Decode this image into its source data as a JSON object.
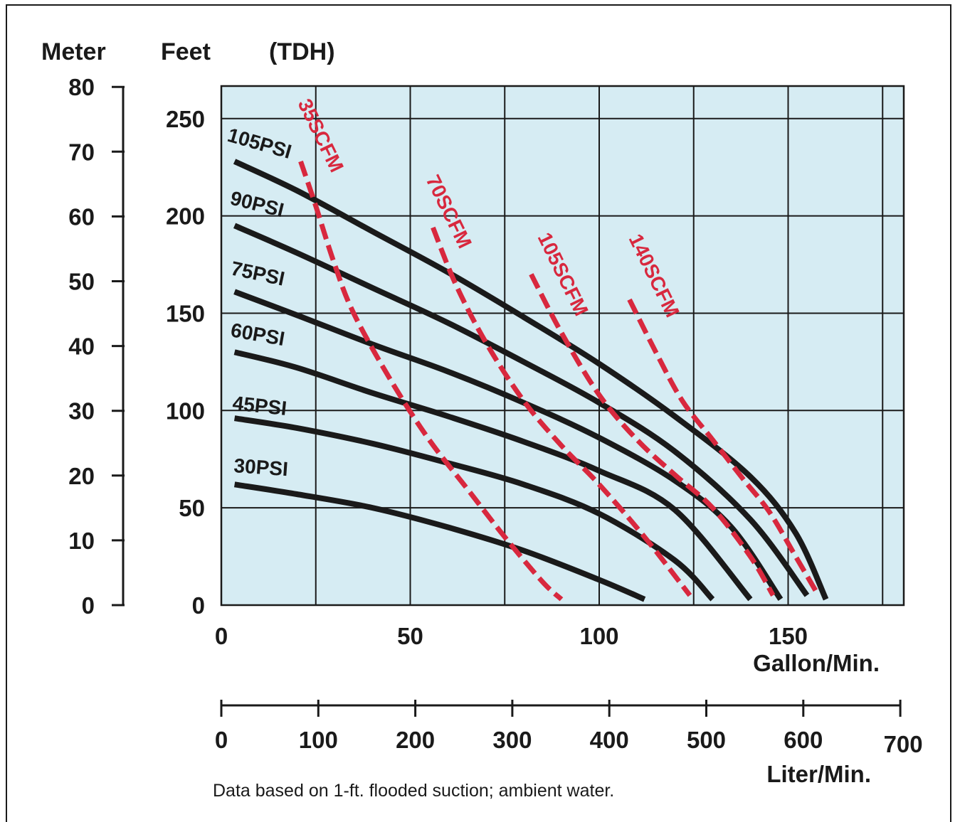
{
  "colors": {
    "plot_bg": "#d6ecf3",
    "psi_line": "#1a1a1a",
    "scfm_line": "#d8283e",
    "grid": "#1a1a1a"
  },
  "headers": {
    "meter": "Meter",
    "feet": "Feet",
    "tdh": "(TDH)"
  },
  "footnote": "Data based on 1-ft. flooded suction; ambient water.",
  "chart_data": {
    "type": "line",
    "title": "",
    "xlabel": "Gallon/Min.",
    "x2label": "Liter/Min.",
    "ylabel": "Feet",
    "y2label": "Meter",
    "xlim": [
      0,
      180
    ],
    "ylim": [
      0,
      265
    ],
    "grid": true,
    "x_ticks": [
      0,
      50,
      100,
      150
    ],
    "x_tick_labels": [
      "0",
      "50",
      "100",
      "150"
    ],
    "y_ticks": [
      0,
      50,
      100,
      150,
      200,
      250
    ],
    "y_tick_labels": [
      "0",
      "50",
      "100",
      "150",
      "200",
      "250"
    ],
    "meter_ticks": [
      0,
      10,
      20,
      30,
      40,
      50,
      60,
      70,
      80
    ],
    "meter_tick_labels": [
      "0",
      "10",
      "20",
      "30",
      "40",
      "50",
      "60",
      "70",
      "80"
    ],
    "liter_ticks": [
      0,
      100,
      200,
      300,
      400,
      500,
      600,
      700
    ],
    "liter_tick_labels": [
      "0",
      "100",
      "200",
      "300",
      "400",
      "500",
      "600",
      "700"
    ],
    "psi_series": [
      {
        "name": "105PSI",
        "x": [
          3.5,
          20,
          40,
          60,
          80,
          100,
          120,
          140,
          152,
          160
        ],
        "y": [
          228,
          213,
          192,
          171,
          148,
          124,
          97,
          66,
          37,
          3
        ]
      },
      {
        "name": "90PSI",
        "x": [
          3.5,
          20,
          40,
          60,
          80,
          100,
          120,
          140,
          155
        ],
        "y": [
          195,
          181,
          163,
          145,
          125,
          104,
          79,
          44,
          5
        ]
      },
      {
        "name": "75PSI",
        "x": [
          3.5,
          20,
          40,
          60,
          80,
          100,
          120,
          135,
          148
        ],
        "y": [
          161,
          149,
          134,
          120,
          104,
          86,
          64,
          40,
          3
        ]
      },
      {
        "name": "60PSI",
        "x": [
          3.5,
          20,
          40,
          60,
          80,
          100,
          120,
          140
        ],
        "y": [
          130,
          122,
          109,
          97,
          84,
          69,
          49,
          3
        ]
      },
      {
        "name": "45PSI",
        "x": [
          3.5,
          20,
          40,
          60,
          80,
          100,
          120,
          130
        ],
        "y": [
          96,
          91,
          83,
          73,
          62,
          47,
          23,
          3
        ]
      },
      {
        "name": "30PSI",
        "x": [
          3.5,
          20,
          40,
          60,
          80,
          100,
          112
        ],
        "y": [
          62,
          57,
          50,
          40,
          28,
          13,
          3
        ]
      }
    ],
    "scfm_series": [
      {
        "name": "35SCFM",
        "x": [
          21,
          25,
          30,
          35,
          45,
          55,
          65,
          75,
          85,
          90
        ],
        "y": [
          228,
          205,
          175,
          150,
          115,
          85,
          60,
          35,
          12,
          3
        ]
      },
      {
        "name": "70SCFM",
        "x": [
          56,
          62,
          70,
          80,
          90,
          100,
          112,
          124
        ],
        "y": [
          194,
          165,
          135,
          105,
          82,
          62,
          35,
          5
        ]
      },
      {
        "name": "105SCFM",
        "x": [
          82,
          90,
          100,
          110,
          120,
          130,
          140,
          146
        ],
        "y": [
          170,
          140,
          108,
          85,
          67,
          50,
          25,
          5
        ]
      },
      {
        "name": "140SCFM",
        "x": [
          108,
          115,
          122,
          130,
          138,
          145,
          152,
          158
        ],
        "y": [
          157,
          130,
          105,
          85,
          65,
          48,
          25,
          5
        ]
      }
    ]
  }
}
